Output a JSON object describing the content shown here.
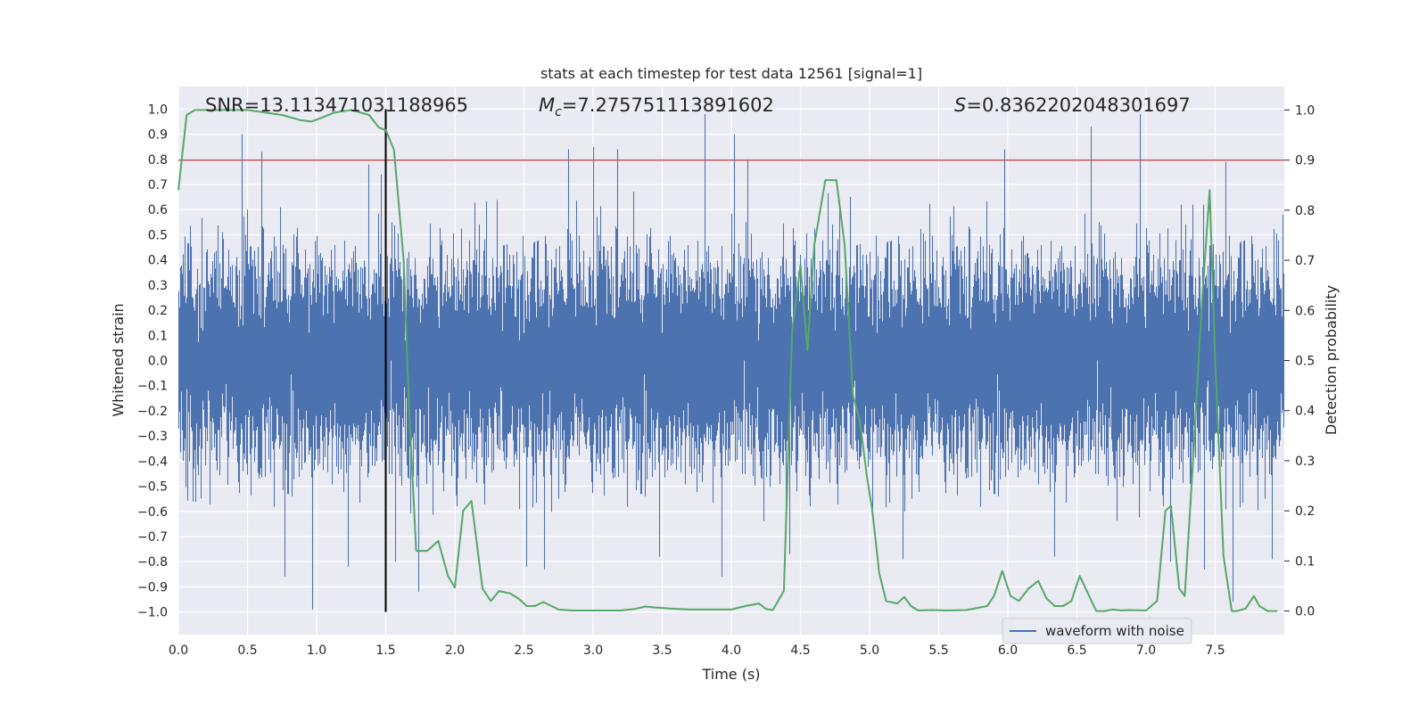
{
  "chart_data": {
    "type": "line",
    "title": "stats at each timestep for test data 12561 [signal=1]",
    "xlabel": "Time (s)",
    "ylabel_left": "Whitened strain",
    "ylabel_right": "Detection probability",
    "xlim": [
      0.0,
      8.0
    ],
    "ylim_left": [
      -1.09,
      1.09
    ],
    "ylim_right": [
      -0.047,
      1.047
    ],
    "x_ticks": [
      "0.0",
      "0.5",
      "1.0",
      "1.5",
      "2.0",
      "2.5",
      "3.0",
      "3.5",
      "4.0",
      "4.5",
      "5.0",
      "5.5",
      "6.0",
      "6.5",
      "7.0",
      "7.5"
    ],
    "y_left_ticks": [
      "1.0",
      "0.9",
      "0.8",
      "0.7",
      "0.6",
      "0.5",
      "0.4",
      "0.3",
      "0.2",
      "0.1",
      "0.0",
      "−0.1",
      "−0.2",
      "−0.3",
      "−0.4",
      "−0.5",
      "−0.6",
      "−0.7",
      "−0.8",
      "−0.9",
      "−1.0"
    ],
    "y_right_ticks": [
      "1.0",
      "0.9",
      "0.8",
      "0.7",
      "0.6",
      "0.5",
      "0.4",
      "0.3",
      "0.2",
      "0.1",
      "0.0"
    ],
    "grid": true,
    "legend_position": "lower-right",
    "annotations": {
      "snr": "SNR=13.113471031188965",
      "mc_symbol": "M",
      "mc_subscript": "c",
      "mc_value": "=7.275751113891602",
      "s_symbol": "S",
      "s_value": "=0.8362202048301697"
    },
    "threshold": {
      "value": 0.9,
      "axis": "right",
      "color": "#c44e52"
    },
    "merger_time": {
      "x": 1.5,
      "y_range": [
        -1.0,
        1.0
      ],
      "color": "#000000"
    },
    "series": [
      {
        "name": "waveform with noise",
        "axis": "left",
        "color": "#4c72b0",
        "sample_rate": 2048,
        "duration": 8.0,
        "typical_amplitude": 0.35,
        "envelope_max": [
          [
            0.0,
            0.55
          ],
          [
            0.5,
            0.6
          ],
          [
            1.0,
            0.62
          ],
          [
            1.5,
            0.6
          ],
          [
            2.0,
            0.62
          ],
          [
            2.5,
            0.65
          ],
          [
            3.0,
            0.66
          ],
          [
            3.5,
            0.68
          ],
          [
            4.0,
            0.7
          ],
          [
            4.5,
            0.68
          ],
          [
            5.0,
            0.64
          ],
          [
            5.5,
            0.62
          ],
          [
            6.0,
            0.64
          ],
          [
            6.5,
            0.66
          ],
          [
            7.0,
            0.62
          ],
          [
            7.5,
            0.62
          ],
          [
            8.0,
            0.58
          ]
        ],
        "peaks": [
          [
            0.46,
            0.9
          ],
          [
            0.6,
            0.83
          ],
          [
            1.38,
            0.78
          ],
          [
            1.47,
            0.74
          ],
          [
            2.82,
            0.84
          ],
          [
            3.0,
            0.85
          ],
          [
            3.18,
            0.84
          ],
          [
            3.81,
            0.98
          ],
          [
            4.02,
            0.9
          ],
          [
            4.12,
            0.8
          ],
          [
            5.98,
            0.84
          ],
          [
            6.6,
            0.93
          ],
          [
            6.96,
            0.98
          ],
          [
            7.58,
            0.79
          ]
        ],
        "troughs": [
          [
            0.77,
            -0.86
          ],
          [
            0.97,
            -0.99
          ],
          [
            1.23,
            -0.82
          ],
          [
            1.57,
            -0.8
          ],
          [
            1.74,
            -0.92
          ],
          [
            2.52,
            -0.82
          ],
          [
            2.65,
            -0.83
          ],
          [
            3.48,
            -0.78
          ],
          [
            3.93,
            -0.86
          ],
          [
            4.42,
            -0.77
          ],
          [
            5.24,
            -0.79
          ],
          [
            6.34,
            -0.78
          ],
          [
            7.18,
            -0.8
          ],
          [
            7.42,
            -0.83
          ],
          [
            7.63,
            -0.96
          ],
          [
            7.91,
            -0.79
          ]
        ]
      },
      {
        "name": "",
        "axis": "right",
        "color": "#55a868",
        "x": [
          0.0,
          0.06,
          0.12,
          0.25,
          0.5,
          0.75,
          0.88,
          0.96,
          1.04,
          1.13,
          1.25,
          1.38,
          1.45,
          1.5,
          1.56,
          1.63,
          1.67,
          1.72,
          1.8,
          1.88,
          1.95,
          2.0,
          2.06,
          2.12,
          2.2,
          2.26,
          2.32,
          2.4,
          2.46,
          2.52,
          2.58,
          2.64,
          2.7,
          2.75,
          2.85,
          2.98,
          3.2,
          3.3,
          3.38,
          3.45,
          3.55,
          3.7,
          3.85,
          4.0,
          4.1,
          4.2,
          4.25,
          4.3,
          4.38,
          4.44,
          4.5,
          4.55,
          4.6,
          4.68,
          4.76,
          4.82,
          4.88,
          4.93,
          4.98,
          5.02,
          5.07,
          5.12,
          5.2,
          5.25,
          5.3,
          5.35,
          5.45,
          5.55,
          5.7,
          5.85,
          5.9,
          5.96,
          6.02,
          6.08,
          6.15,
          6.22,
          6.28,
          6.34,
          6.4,
          6.46,
          6.52,
          6.58,
          6.64,
          6.7,
          6.76,
          6.82,
          6.88,
          7.0,
          7.08,
          7.14,
          7.18,
          7.24,
          7.28,
          7.34,
          7.4,
          7.46,
          7.5,
          7.56,
          7.62,
          7.66,
          7.72,
          7.78,
          7.82,
          7.88,
          7.95
        ],
        "y": [
          0.84,
          0.99,
          1.0,
          1.0,
          1.0,
          0.99,
          0.98,
          0.977,
          0.985,
          0.995,
          1.0,
          0.99,
          0.965,
          0.96,
          0.92,
          0.7,
          0.4,
          0.12,
          0.12,
          0.14,
          0.07,
          0.047,
          0.2,
          0.22,
          0.045,
          0.02,
          0.04,
          0.035,
          0.025,
          0.01,
          0.01,
          0.018,
          0.01,
          0.003,
          0.001,
          0.001,
          0.001,
          0.004,
          0.009,
          0.007,
          0.005,
          0.003,
          0.003,
          0.003,
          0.01,
          0.015,
          0.004,
          0.002,
          0.04,
          0.56,
          0.69,
          0.52,
          0.73,
          0.86,
          0.86,
          0.73,
          0.43,
          0.38,
          0.27,
          0.2,
          0.075,
          0.02,
          0.015,
          0.028,
          0.01,
          0.001,
          0.002,
          0.001,
          0.002,
          0.01,
          0.03,
          0.08,
          0.03,
          0.02,
          0.045,
          0.06,
          0.025,
          0.01,
          0.01,
          0.02,
          0.07,
          0.035,
          0.0,
          0.0,
          0.003,
          0.001,
          0.002,
          0.001,
          0.02,
          0.2,
          0.21,
          0.045,
          0.03,
          0.3,
          0.6,
          0.84,
          0.5,
          0.11,
          0.0,
          0.0,
          0.005,
          0.03,
          0.01,
          0.0,
          0.0
        ]
      }
    ]
  }
}
